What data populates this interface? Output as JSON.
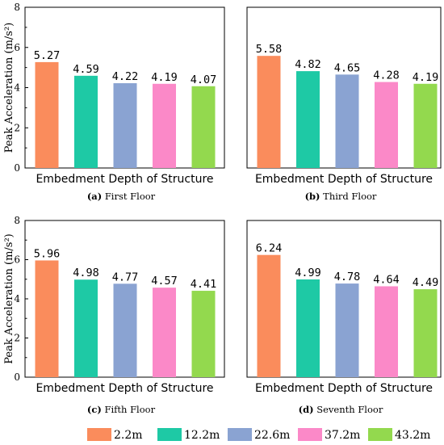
{
  "colors": [
    "#fa8c5c",
    "#1ec9a5",
    "#8aa3d2",
    "#fb89c8",
    "#93d94e"
  ],
  "legend": [
    "2.2m",
    "12.2m",
    "22.6m",
    "37.2m",
    "43.2m"
  ],
  "chart_data": [
    {
      "type": "bar",
      "caption_letter": "(a)",
      "caption_text": " First Floor",
      "categories": [
        "2.2m",
        "12.2m",
        "22.6m",
        "37.2m",
        "43.2m"
      ],
      "values": [
        5.27,
        4.59,
        4.22,
        4.19,
        4.07
      ],
      "data_labels": [
        "5.27",
        "4.59",
        "4.22",
        "4.19",
        "4.07"
      ],
      "xlabel": "Embedment Depth of Structure",
      "ylabel": "Peak Acceleration (m/s²)",
      "ylim": [
        0,
        8
      ],
      "yticks": [
        "0",
        "2",
        "4",
        "6",
        "8"
      ]
    },
    {
      "type": "bar",
      "caption_letter": "(b)",
      "caption_text": " Third Floor",
      "categories": [
        "2.2m",
        "12.2m",
        "22.6m",
        "37.2m",
        "43.2m"
      ],
      "values": [
        5.58,
        4.82,
        4.65,
        4.28,
        4.19
      ],
      "data_labels": [
        "5.58",
        "4.82",
        "4.65",
        "4.28",
        "4.19"
      ],
      "xlabel": "Embedment Depth of Structure",
      "ylabel": "",
      "ylim": [
        0,
        8
      ],
      "yticks": []
    },
    {
      "type": "bar",
      "caption_letter": "(c)",
      "caption_text": " Fifth Floor",
      "categories": [
        "2.2m",
        "12.2m",
        "22.6m",
        "37.2m",
        "43.2m"
      ],
      "values": [
        5.96,
        4.98,
        4.77,
        4.57,
        4.41
      ],
      "data_labels": [
        "5.96",
        "4.98",
        "4.77",
        "4.57",
        "4.41"
      ],
      "xlabel": "Embedment Depth of Structure",
      "ylabel": "Peak Acceleration (m/s²)",
      "ylim": [
        0,
        8
      ],
      "yticks": [
        "0",
        "2",
        "4",
        "6",
        "8"
      ]
    },
    {
      "type": "bar",
      "caption_letter": "(d)",
      "caption_text": " Seventh Floor",
      "categories": [
        "2.2m",
        "12.2m",
        "22.6m",
        "37.2m",
        "43.2m"
      ],
      "values": [
        6.24,
        4.99,
        4.78,
        4.64,
        4.49
      ],
      "data_labels": [
        "6.24",
        "4.99",
        "4.78",
        "4.64",
        "4.49"
      ],
      "xlabel": "Embedment Depth of Structure",
      "ylabel": "",
      "ylim": [
        0,
        8
      ],
      "yticks": []
    }
  ]
}
